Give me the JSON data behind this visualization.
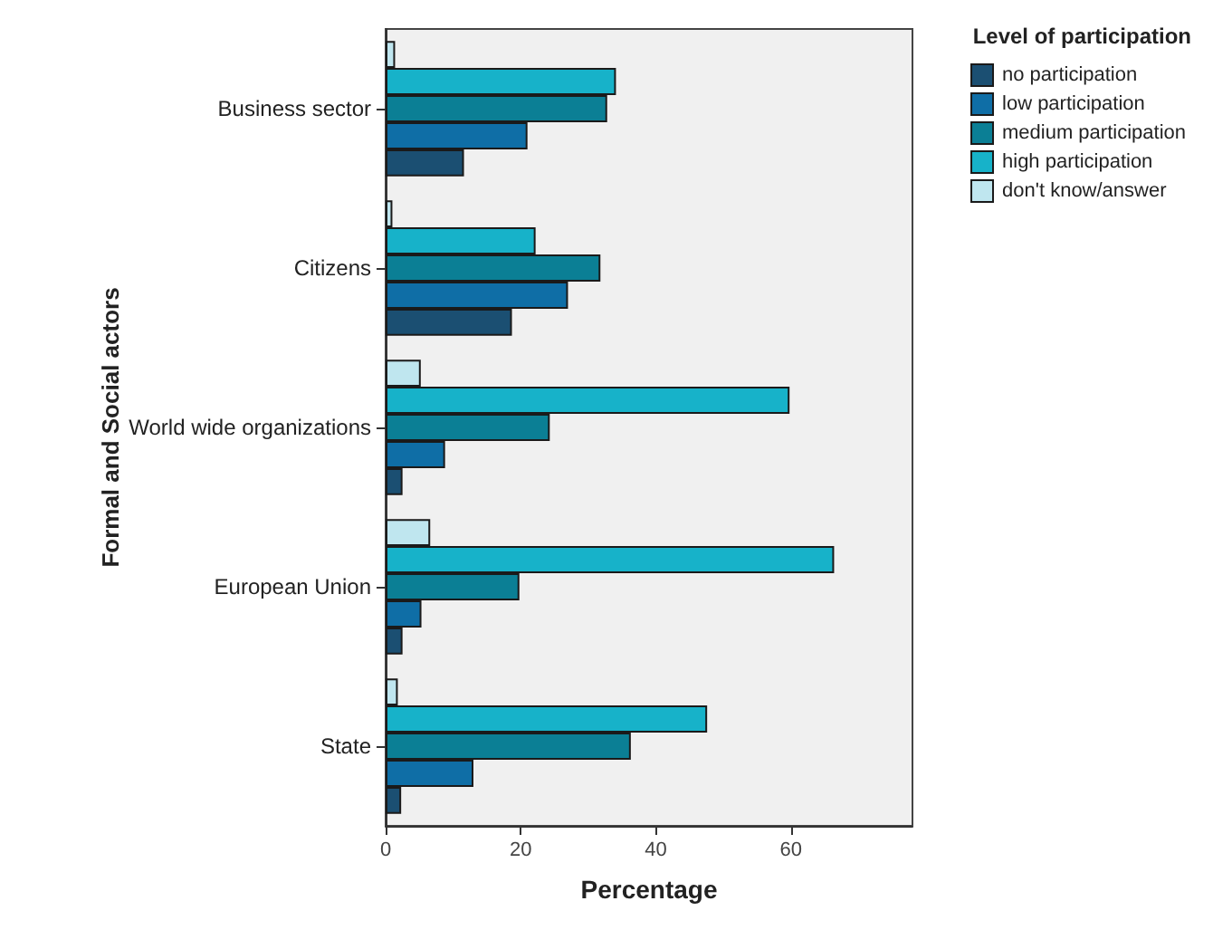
{
  "chart_data": {
    "type": "bar",
    "orientation": "horizontal",
    "xlabel": "Percentage",
    "ylabel": "Formal and Social actors",
    "legend_title": "Level of participation",
    "legend": "top right",
    "grid": false,
    "categories": [
      "Business sector",
      "Citizens",
      "World wide organizations",
      "European Union",
      "State"
    ],
    "xlim": [
      0,
      78
    ],
    "xticks": [
      0,
      20,
      40,
      60
    ],
    "series": [
      {
        "name": "no participation",
        "color": "#1b4f72",
        "values": [
          11.6,
          18.7,
          2.5,
          2.5,
          2.3
        ]
      },
      {
        "name": "low participation",
        "color": "#0f6ea6",
        "values": [
          21,
          27,
          8.8,
          5.3,
          13
        ]
      },
      {
        "name": "medium participation",
        "color": "#0b7f95",
        "values": [
          32.8,
          31.8,
          24.3,
          19.8,
          36.3
        ]
      },
      {
        "name": "high participation",
        "color": "#17b2c9",
        "values": [
          34.1,
          22.2,
          59.8,
          66.4,
          47.6
        ]
      },
      {
        "name": "don't know/answer",
        "color": "#bfe6ef",
        "values": [
          1.4,
          1,
          5.2,
          6.6,
          1.8
        ]
      }
    ]
  }
}
